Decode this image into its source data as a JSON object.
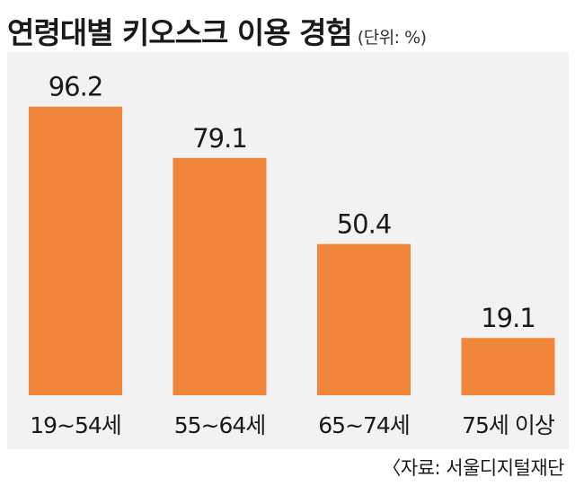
{
  "title": "연령대별 키오스크 이용 경험",
  "unit_note": "(단위: %)",
  "source_note": "〈자료: 서울디지털재단",
  "chart_data": {
    "type": "bar",
    "categories": [
      "19~54세",
      "55~64세",
      "65~74세",
      "75세 이상"
    ],
    "values": [
      96.2,
      79.1,
      50.4,
      19.1
    ],
    "data_labels": [
      "96.2",
      "79.1",
      "50.4",
      "19.1"
    ],
    "title": "연령대별 키오스크 이용 경험",
    "unit": "%",
    "ylim": [
      0,
      100
    ],
    "grid": false,
    "bar_color": "#f0863a",
    "background_color": "#f2f2f2"
  }
}
